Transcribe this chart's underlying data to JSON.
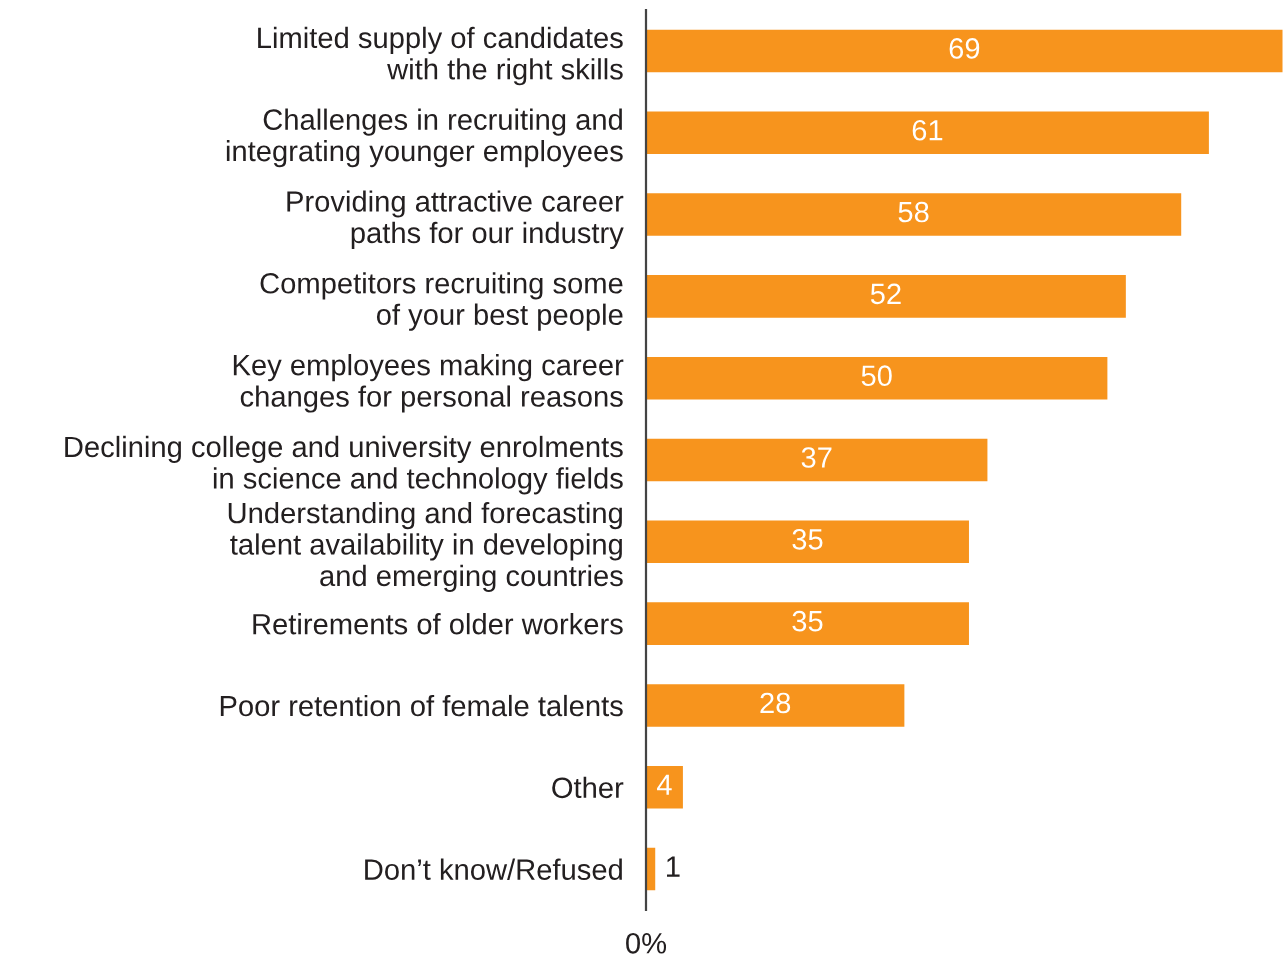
{
  "chart_data": {
    "type": "bar",
    "orientation": "horizontal",
    "categories": [
      "Limited supply of candidates\nwith the right skills",
      "Challenges in recruiting and\nintegrating younger employees",
      "Providing attractive career\npaths for our industry",
      "Competitors recruiting some\nof your best people",
      "Key employees making career\nchanges for personal reasons",
      "Declining college and university enrolments\nin science and technology fields",
      "Understanding and forecasting\ntalent availability in developing\nand emerging countries",
      "Retirements of older workers",
      "Poor retention of female talents",
      "Other",
      "Don’t know/Refused"
    ],
    "values": [
      69,
      61,
      58,
      52,
      50,
      37,
      35,
      35,
      28,
      4,
      1
    ],
    "color": "#f7941d",
    "data_labels": true,
    "annotations": [
      "0%"
    ],
    "grid": false
  }
}
